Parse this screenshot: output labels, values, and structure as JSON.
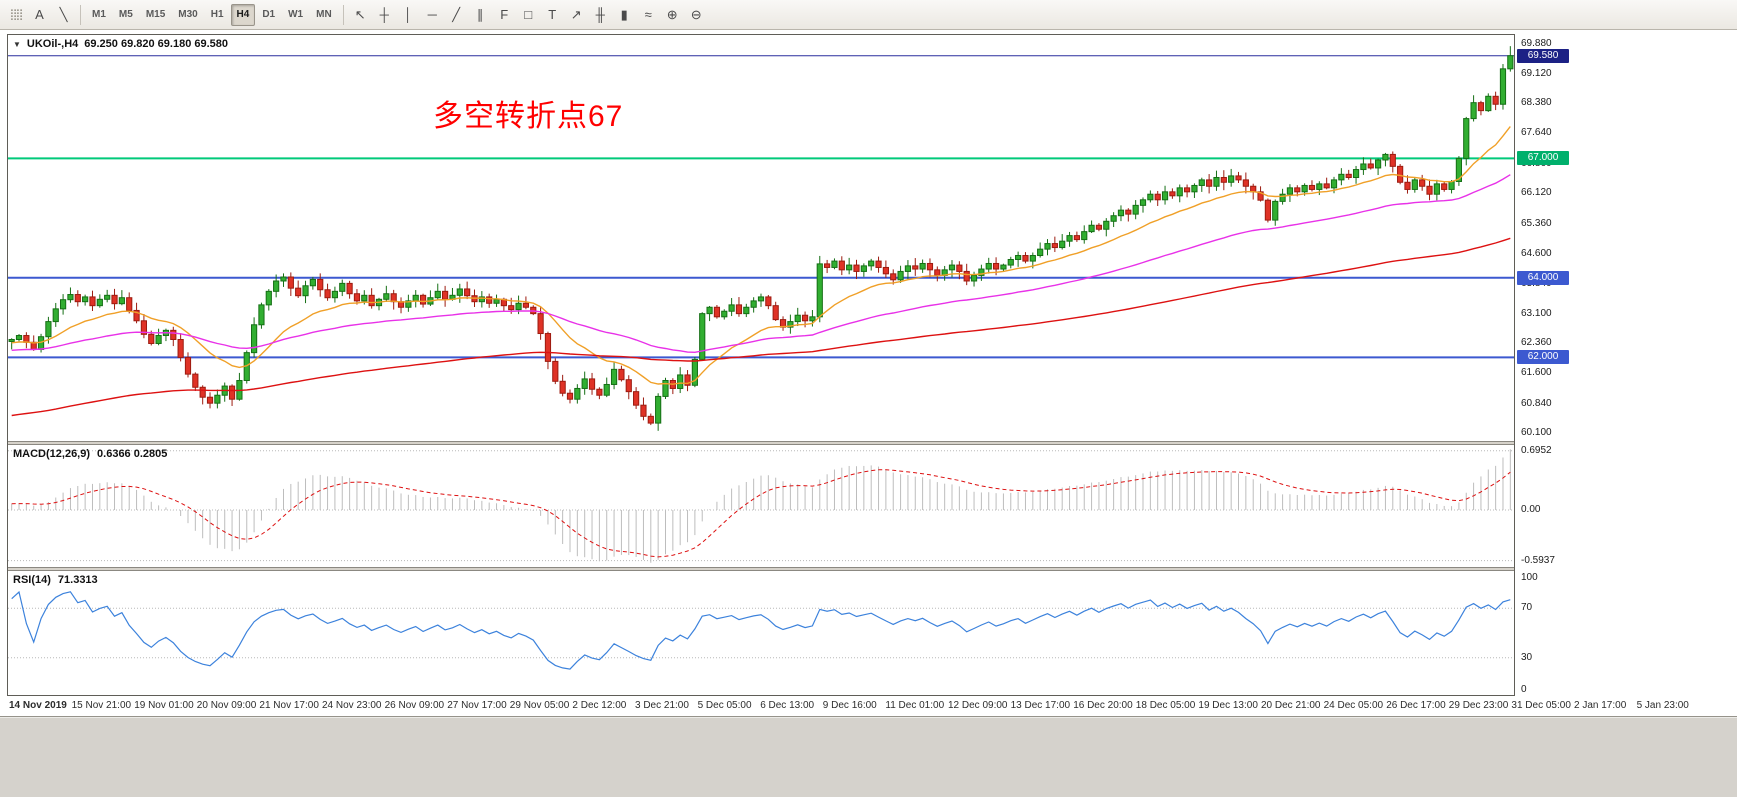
{
  "toolbar": {
    "handle_glyph": "⣿⣿",
    "left_icons": [
      {
        "name": "text-tool-icon",
        "glyph": "A"
      },
      {
        "name": "draw-tool-icon",
        "glyph": "╲"
      }
    ],
    "timeframes": {
      "items": [
        "M1",
        "M5",
        "M15",
        "M30",
        "H1",
        "H4",
        "D1",
        "W1",
        "MN"
      ],
      "active": "H4"
    },
    "right_icons": [
      {
        "name": "cursor-icon",
        "glyph": "↖"
      },
      {
        "name": "crosshair-icon",
        "glyph": "┼"
      },
      {
        "name": "vertical-line-icon",
        "glyph": "│"
      },
      {
        "name": "horizontal-line-icon",
        "glyph": "─"
      },
      {
        "name": "trendline-icon",
        "glyph": "╱"
      },
      {
        "name": "channel-icon",
        "glyph": "∥"
      },
      {
        "name": "fibonacci-icon",
        "glyph": "F"
      },
      {
        "name": "shapes-icon",
        "glyph": "□"
      },
      {
        "name": "text-label-icon",
        "glyph": "T"
      },
      {
        "name": "arrow-tool-icon",
        "glyph": "↗"
      },
      {
        "name": "bar-chart-icon",
        "glyph": "╫"
      },
      {
        "name": "candlestick-chart-icon",
        "glyph": "▮"
      },
      {
        "name": "line-chart-icon",
        "glyph": "≈"
      },
      {
        "name": "zoom-in-icon",
        "glyph": "⊕"
      },
      {
        "name": "zoom-out-icon",
        "glyph": "⊖"
      }
    ]
  },
  "chart": {
    "expand_arrow_glyph": "▼",
    "symbol_title": "UKOil-,H4",
    "ohlc_text": "69.250 69.820 69.180 69.580",
    "annotation": {
      "text": "多空转折点67",
      "color": "#ff0000"
    }
  },
  "macd_panel": {
    "label": "MACD(12,26,9)",
    "values_text": "0.6366 0.2805"
  },
  "rsi_panel": {
    "label": "RSI(14)",
    "value_text": "71.3313"
  },
  "chart_data": {
    "type": "candlestick",
    "symbol": "UKOil-",
    "timeframe": "H4",
    "title": "UKOil-,H4 69.250 69.820 69.180 69.580",
    "last_bar": {
      "open": 69.25,
      "high": 69.82,
      "low": 69.18,
      "close": 69.58
    },
    "y_range": [
      59.9,
      70.1
    ],
    "y_ticks": [
      "69.880",
      "69.120",
      "68.380",
      "67.640",
      "66.860",
      "66.120",
      "65.360",
      "64.600",
      "63.840",
      "63.100",
      "62.360",
      "61.600",
      "60.840",
      "60.100"
    ],
    "x_labels": [
      "14 Nov 2019",
      "15 Nov 21:00",
      "19 Nov 01:00",
      "20 Nov 09:00",
      "21 Nov 17:00",
      "24 Nov 23:00",
      "26 Nov 09:00",
      "27 Nov 17:00",
      "29 Nov 05:00",
      "2 Dec 12:00",
      "3 Dec 21:00",
      "5 Dec 05:00",
      "6 Dec 13:00",
      "9 Dec 16:00",
      "11 Dec 01:00",
      "12 Dec 09:00",
      "13 Dec 17:00",
      "16 Dec 20:00",
      "18 Dec 05:00",
      "19 Dec 13:00",
      "20 Dec 21:00",
      "24 Dec 05:00",
      "26 Dec 17:00",
      "29 Dec 23:00",
      "31 Dec 05:00",
      "2 Jan 17:00",
      "5 Jan 23:00"
    ],
    "hlines": [
      {
        "price": 69.58,
        "color": "#2a2f9e",
        "width": 1,
        "badge": "69.580",
        "badge_bg": "#1c2185"
      },
      {
        "price": 67.0,
        "color": "#00c97a",
        "width": 2,
        "badge": "67.000",
        "badge_bg": "#00b06c"
      },
      {
        "price": 64.0,
        "color": "#3c59d0",
        "width": 2,
        "badge": "64.000",
        "badge_bg": "#3c59d0"
      },
      {
        "price": 62.0,
        "color": "#3c59d0",
        "width": 2,
        "badge": "62.000",
        "badge_bg": "#3c59d0"
      }
    ],
    "closes": [
      62.45,
      62.55,
      62.38,
      62.2,
      62.52,
      62.9,
      63.22,
      63.45,
      63.58,
      63.4,
      63.52,
      63.3,
      63.46,
      63.56,
      63.35,
      63.5,
      63.18,
      62.92,
      62.58,
      62.35,
      62.55,
      62.68,
      62.45,
      62.0,
      61.58,
      61.25,
      61.0,
      60.85,
      61.05,
      61.28,
      60.95,
      61.42,
      62.12,
      62.82,
      63.32,
      63.66,
      63.92,
      64.02,
      63.74,
      63.55,
      63.8,
      63.96,
      63.7,
      63.5,
      63.66,
      63.86,
      63.6,
      63.42,
      63.56,
      63.3,
      63.46,
      63.6,
      63.4,
      63.26,
      63.42,
      63.56,
      63.34,
      63.5,
      63.66,
      63.46,
      63.56,
      63.72,
      63.55,
      63.4,
      63.52,
      63.36,
      63.46,
      63.3,
      63.2,
      63.36,
      63.26,
      63.1,
      62.6,
      61.9,
      61.4,
      61.1,
      60.95,
      61.22,
      61.46,
      61.2,
      61.05,
      61.32,
      61.7,
      61.44,
      61.14,
      60.8,
      60.52,
      60.35,
      61.02,
      61.42,
      61.22,
      61.56,
      61.3,
      61.95,
      63.1,
      63.26,
      63.02,
      63.16,
      63.32,
      63.1,
      63.26,
      63.42,
      63.52,
      63.3,
      62.95,
      62.76,
      62.9,
      63.06,
      62.92,
      63.02,
      64.35,
      64.26,
      64.42,
      64.2,
      64.32,
      64.16,
      64.3,
      64.42,
      64.26,
      64.1,
      63.95,
      64.16,
      64.3,
      64.22,
      64.36,
      64.2,
      64.06,
      64.2,
      64.32,
      64.16,
      63.92,
      64.06,
      64.22,
      64.36,
      64.22,
      64.32,
      64.46,
      64.56,
      64.42,
      64.56,
      64.72,
      64.86,
      64.76,
      64.92,
      65.06,
      64.96,
      65.16,
      65.32,
      65.22,
      65.42,
      65.56,
      65.7,
      65.6,
      65.82,
      65.96,
      66.1,
      65.96,
      66.16,
      66.06,
      66.26,
      66.16,
      66.32,
      66.46,
      66.3,
      66.52,
      66.4,
      66.56,
      66.46,
      66.3,
      66.16,
      65.95,
      65.45,
      65.92,
      66.1,
      66.26,
      66.16,
      66.32,
      66.22,
      66.36,
      66.26,
      66.46,
      66.6,
      66.52,
      66.72,
      66.86,
      66.76,
      66.96,
      67.1,
      66.8,
      66.4,
      66.22,
      66.46,
      66.3,
      66.1,
      66.36,
      66.22,
      66.42,
      67.0,
      68.0,
      68.4,
      68.2,
      68.56,
      68.36,
      69.25,
      69.58
    ],
    "wick_overrides": {
      "27": 60.72,
      "30": 60.78,
      "86": 60.42,
      "87": 60.3
    },
    "candle_colors": {
      "bull": "#31ae31",
      "bull_border": "#156f15",
      "bear": "#df3226",
      "bear_border": "#9c1b10"
    },
    "moving_averages": [
      {
        "name": "fast-ma",
        "period": 16,
        "color": "#f0a028",
        "warmup_start": 62.0,
        "warmup_len": 40
      },
      {
        "name": "medium-ma",
        "period": 55,
        "color": "#e832e8",
        "warmup_start": 61.6,
        "warmup_len": 80
      },
      {
        "name": "slow-ma",
        "period": 150,
        "color": "#dd1111",
        "warmup_start": 57.8,
        "warmup_len": 160
      }
    ],
    "macd": {
      "fast": 12,
      "slow": 26,
      "signal": 9,
      "current_macd": 0.6366,
      "current_signal": 0.2805,
      "histogram_color": "#bdbdbd",
      "signal_color": "#dd1111",
      "warmup_start": 61.8,
      "warmup_len": 60,
      "scale_ticks": [
        {
          "text": "0.6952",
          "value": 0.6952
        },
        {
          "text": "0.00",
          "value": 0.0
        },
        {
          "text": "-0.5937",
          "value": -0.5937
        }
      ]
    },
    "rsi": {
      "period": 14,
      "current": 71.3313,
      "line_color": "#3c82dc",
      "levels": [
        70,
        30
      ],
      "warmup_start": 62.0,
      "warmup_len": 30,
      "scale_ticks": [
        {
          "text": "100",
          "value": 100
        },
        {
          "text": "70",
          "value": 70
        },
        {
          "text": "30",
          "value": 30
        },
        {
          "text": "0",
          "value": 0
        }
      ]
    }
  }
}
